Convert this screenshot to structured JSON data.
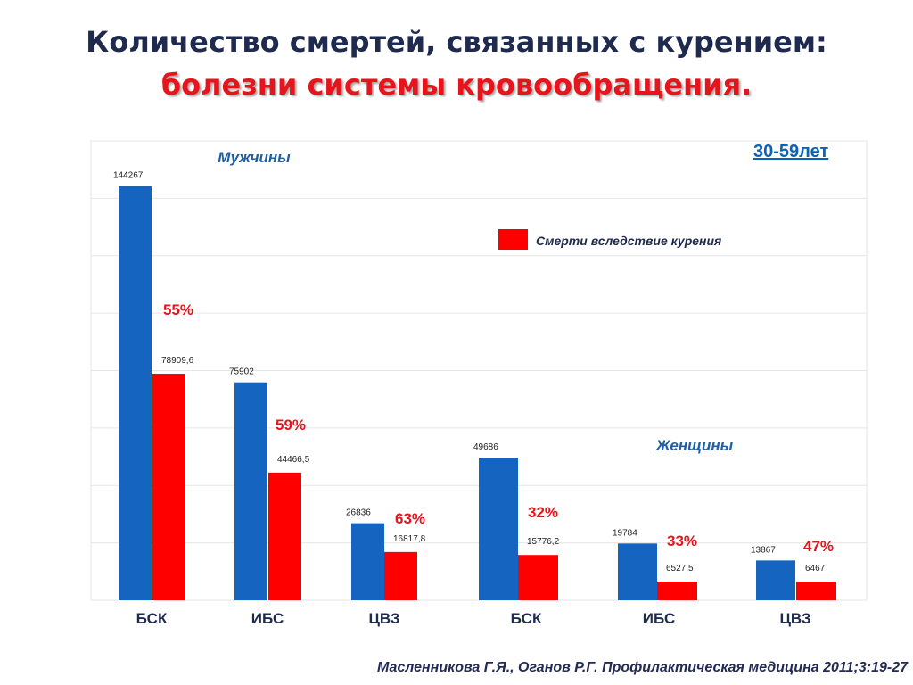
{
  "header": {
    "title_line1": "Количество смертей, связанных с курением:",
    "title_line2": "болезни системы кровообращения."
  },
  "age_label": "30-59лет",
  "citation": "Масленникова Г.Я., Оганов Р.Г.  Профилактическая медицина  2011;3:19-27",
  "colors": {
    "total": "#1565c0",
    "smoking": "#ff0000"
  },
  "chart_data": {
    "type": "bar",
    "ylim": [
      0,
      160000
    ],
    "grid": true,
    "legend": {
      "placement": "top-right",
      "entries": [
        "Смерти вследствие курения"
      ]
    },
    "groups": [
      {
        "label": "Мужчины",
        "categories": [
          "БСК",
          "ИБС",
          "ЦВЗ"
        ],
        "series": [
          {
            "values": [
              144267,
              75902,
              26836
            ],
            "labels": [
              "144267",
              "75902",
              "26836"
            ]
          },
          {
            "name": "Смерти вследствие курения",
            "values": [
              78909.6,
              44466.5,
              16817.8
            ],
            "labels": [
              "78909,6",
              "44466,5",
              "16817,8"
            ]
          }
        ],
        "percentages": [
          "55%",
          "59%",
          "63%"
        ]
      },
      {
        "label": "Женщины",
        "categories": [
          "БСК",
          "ИБС",
          "ЦВЗ"
        ],
        "series": [
          {
            "values": [
              49686,
              19784,
              13867
            ],
            "labels": [
              "49686",
              "19784",
              "13867"
            ]
          },
          {
            "name": "Смерти вследствие курения",
            "values": [
              15776.2,
              6527.5,
              6467
            ],
            "labels": [
              "15776,2",
              "6527,5",
              "6467"
            ]
          }
        ],
        "percentages": [
          "32%",
          "33%",
          "47%"
        ]
      }
    ]
  }
}
